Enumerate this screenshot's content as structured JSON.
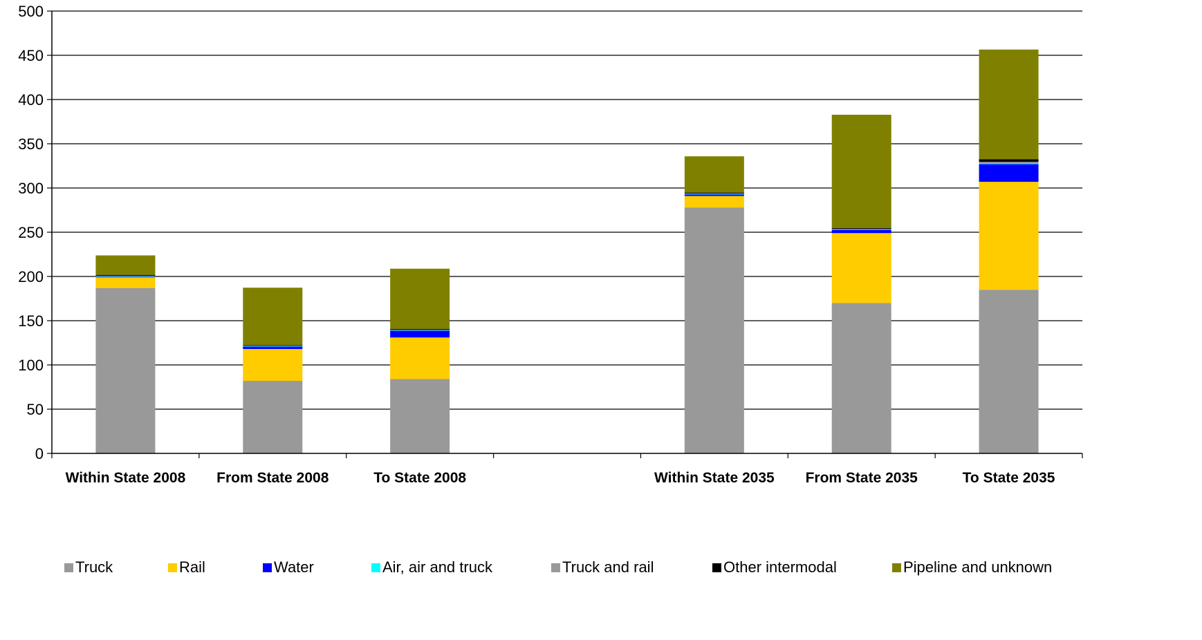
{
  "chart_data": {
    "type": "bar",
    "stacked": true,
    "title": "",
    "xlabel": "",
    "ylabel": "",
    "ylim": [
      0,
      500
    ],
    "yticks": [
      0,
      50,
      100,
      150,
      200,
      250,
      300,
      350,
      400,
      450,
      500
    ],
    "grid": true,
    "legend_position": "bottom",
    "categories": [
      "Within State 2008",
      "From State 2008",
      "To State 2008",
      "",
      "Within State 2035",
      "From State 2035",
      "To State 2035"
    ],
    "series": [
      {
        "name": "Truck",
        "color": "#999999",
        "values": [
          187,
          82,
          84,
          null,
          278,
          170,
          185
        ]
      },
      {
        "name": "Rail",
        "color": "#FFCC00",
        "values": [
          12,
          36,
          47,
          null,
          13,
          79,
          122
        ]
      },
      {
        "name": "Water",
        "color": "#0000FF",
        "values": [
          1,
          3,
          8,
          null,
          2,
          4,
          20
        ]
      },
      {
        "name": "Air, air and truck",
        "color": "#00FFFF",
        "values": [
          0.3,
          0.3,
          0.3,
          null,
          0.3,
          0.3,
          0.5
        ]
      },
      {
        "name": "Truck and rail",
        "color": "#999999",
        "values": [
          0.5,
          0.5,
          0.5,
          null,
          0.5,
          0.5,
          2
        ]
      },
      {
        "name": "Other intermodal",
        "color": "#000000",
        "values": [
          1,
          0.5,
          1,
          null,
          1,
          1,
          3
        ]
      },
      {
        "name": "Pipeline and unknown",
        "color": "#808000",
        "values": [
          22,
          65,
          68,
          null,
          41,
          128,
          124
        ]
      }
    ]
  }
}
